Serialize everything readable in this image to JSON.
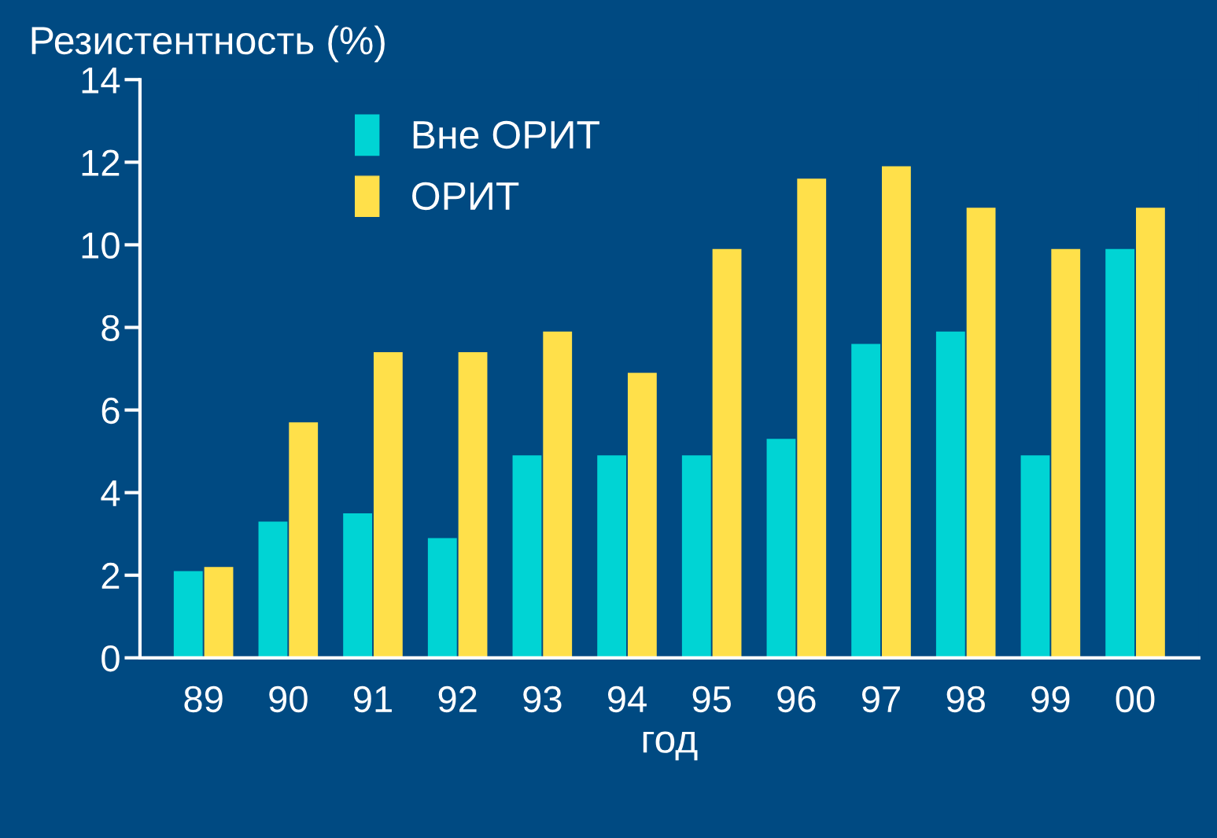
{
  "chart_data": {
    "type": "bar",
    "ylabel": "Резистентность (%)",
    "xlabel": "год",
    "categories": [
      "89",
      "90",
      "91",
      "92",
      "93",
      "94",
      "95",
      "96",
      "97",
      "98",
      "99",
      "00"
    ],
    "series": [
      {
        "name": "Вне ОРИТ",
        "color": "#00d4d4",
        "values": [
          2.1,
          3.3,
          3.5,
          2.9,
          4.9,
          4.9,
          4.9,
          5.3,
          7.6,
          7.9,
          4.9,
          9.9
        ]
      },
      {
        "name": "ОРИТ",
        "color": "#ffe04a",
        "values": [
          2.2,
          5.7,
          7.4,
          7.4,
          7.9,
          6.9,
          9.9,
          11.6,
          11.9,
          10.9,
          9.9,
          10.9
        ]
      }
    ],
    "ylim": [
      0,
      14
    ],
    "yticks": [
      0,
      2,
      4,
      6,
      8,
      10,
      12,
      14
    ],
    "grid": false,
    "legend": "top left"
  }
}
